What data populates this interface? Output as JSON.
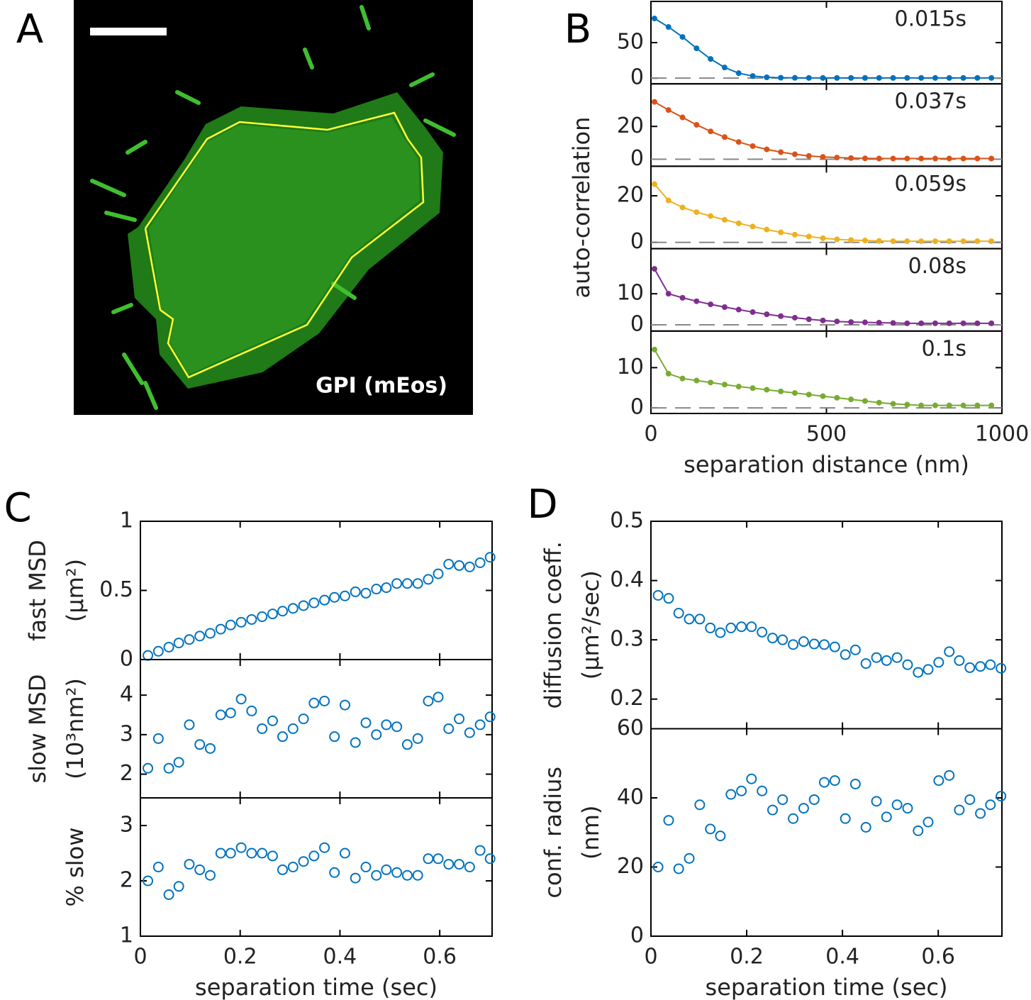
{
  "image_panel": {
    "panel": "A",
    "label": "GPI (mEos)"
  },
  "chart_data": [
    {
      "type": "line",
      "panel": "B",
      "ylabel": "auto-correlation",
      "xlabel": "separation distance (nm)",
      "xlim": [
        0,
        1000
      ],
      "xticks": [
        0,
        500,
        1000
      ],
      "hline": 0,
      "x": [
        10,
        50,
        90,
        130,
        170,
        210,
        250,
        290,
        330,
        370,
        410,
        450,
        490,
        530,
        570,
        610,
        650,
        690,
        730,
        770,
        810,
        850,
        890,
        930,
        970
      ],
      "subplots": [
        {
          "ylim": [
            -8,
            108
          ],
          "yticks": [
            0,
            50
          ],
          "series": [
            {
              "name": "0.015s",
              "color": "#0072bd",
              "values": [
                84,
                72,
                58,
                42,
                27,
                15,
                7,
                3,
                1.2,
                0.6,
                0.4,
                0.3,
                0.3,
                0.3,
                0.3,
                0.3,
                0.3,
                0.3,
                0.3,
                0.3,
                0.3,
                0.3,
                0.3,
                0.3,
                0.3
              ]
            }
          ]
        },
        {
          "ylim": [
            -4.3,
            46
          ],
          "yticks": [
            0,
            20
          ],
          "series": [
            {
              "name": "0.037s",
              "color": "#d95319",
              "values": [
                35,
                30,
                25.5,
                21,
                17,
                13.5,
                10.5,
                8,
                6,
                4.3,
                3,
                2,
                1.4,
                1,
                0.7,
                0.5,
                0.4,
                0.4,
                0.4,
                0.4,
                0.4,
                0.4,
                0.4,
                0.4,
                0.4
              ]
            }
          ]
        },
        {
          "ylim": [
            -2.7,
            32.7
          ],
          "yticks": [
            0,
            20
          ],
          "series": [
            {
              "name": "0.059s",
              "color": "#edb120",
              "values": [
                25,
                18,
                15,
                13,
                11.3,
                9.7,
                8.2,
                6.8,
                5.5,
                4.3,
                3.3,
                2.5,
                1.8,
                1.3,
                1,
                0.8,
                0.6,
                0.5,
                0.5,
                0.5,
                0.5,
                0.5,
                0.5,
                0.5,
                0.5
              ]
            }
          ]
        },
        {
          "ylim": [
            -2,
            24.5
          ],
          "yticks": [
            0,
            10
          ],
          "series": [
            {
              "name": "0.08s",
              "color": "#7e2f8e",
              "values": [
                18,
                10,
                8.7,
                7.6,
                6.6,
                5.7,
                4.9,
                4.1,
                3.4,
                2.8,
                2.3,
                1.8,
                1.4,
                1.1,
                0.9,
                0.8,
                0.7,
                0.6,
                0.5,
                0.5,
                0.5,
                0.5,
                0.5,
                0.5,
                0.5
              ]
            }
          ]
        },
        {
          "ylim": [
            -1.4,
            19.1
          ],
          "yticks": [
            0,
            10
          ],
          "series": [
            {
              "name": "0.1s",
              "color": "#77ac30",
              "values": [
                14.5,
                8.5,
                7.3,
                6.8,
                6.3,
                5.8,
                5.3,
                4.9,
                4.5,
                4.1,
                3.7,
                3.3,
                2.9,
                2.5,
                2.1,
                1.7,
                1.3,
                1,
                0.8,
                0.6,
                0.6,
                0.6,
                0.6,
                0.6,
                0.6
              ]
            }
          ]
        }
      ]
    },
    {
      "type": "scatter",
      "panel": "C",
      "xlabel": "separation time (sec)",
      "xlim": [
        0,
        0.705
      ],
      "xticks": [
        0,
        0.2,
        0.4,
        0.6
      ],
      "x": [
        0.015,
        0.036,
        0.057,
        0.077,
        0.098,
        0.119,
        0.14,
        0.161,
        0.181,
        0.202,
        0.223,
        0.244,
        0.265,
        0.285,
        0.306,
        0.327,
        0.348,
        0.369,
        0.389,
        0.41,
        0.431,
        0.452,
        0.473,
        0.493,
        0.514,
        0.535,
        0.556,
        0.577,
        0.597,
        0.618,
        0.639,
        0.66,
        0.681,
        0.701
      ],
      "subplots": [
        {
          "ylabel": [
            "fast MSD",
            "(μm²)"
          ],
          "ylim": [
            0,
            1
          ],
          "yticks": [
            0,
            0.5,
            1
          ],
          "series": [
            {
              "color": "#0072bd",
              "values": [
                0.03,
                0.06,
                0.09,
                0.12,
                0.145,
                0.17,
                0.19,
                0.22,
                0.25,
                0.27,
                0.29,
                0.31,
                0.33,
                0.35,
                0.37,
                0.39,
                0.41,
                0.43,
                0.45,
                0.46,
                0.49,
                0.48,
                0.51,
                0.52,
                0.55,
                0.55,
                0.55,
                0.58,
                0.62,
                0.69,
                0.68,
                0.67,
                0.7,
                0.74
              ]
            }
          ]
        },
        {
          "ylabel": [
            "slow MSD",
            "(10³nm²)"
          ],
          "ylim": [
            1.4,
            4.9
          ],
          "yticks": [
            2,
            3,
            4
          ],
          "series": [
            {
              "color": "#0072bd",
              "values": [
                2.15,
                2.9,
                2.15,
                2.3,
                3.25,
                2.75,
                2.65,
                3.5,
                3.55,
                3.9,
                3.6,
                3.15,
                3.35,
                2.95,
                3.15,
                3.4,
                3.8,
                3.85,
                2.95,
                3.75,
                2.8,
                3.3,
                3.0,
                3.25,
                3.2,
                2.75,
                2.9,
                3.85,
                3.95,
                3.15,
                3.4,
                3.05,
                3.25,
                3.45
              ]
            }
          ]
        },
        {
          "ylabel": [
            "% slow"
          ],
          "ylim": [
            1,
            3.5
          ],
          "yticks": [
            1,
            2,
            3
          ],
          "series": [
            {
              "color": "#0072bd",
              "values": [
                2.0,
                2.25,
                1.75,
                1.9,
                2.3,
                2.2,
                2.1,
                2.5,
                2.5,
                2.6,
                2.5,
                2.5,
                2.45,
                2.2,
                2.25,
                2.35,
                2.45,
                2.6,
                2.15,
                2.5,
                2.05,
                2.25,
                2.1,
                2.2,
                2.15,
                2.1,
                2.1,
                2.4,
                2.4,
                2.3,
                2.3,
                2.25,
                2.55,
                2.4
              ]
            }
          ]
        }
      ]
    },
    {
      "type": "scatter",
      "panel": "D",
      "xlabel": "separation time (sec)",
      "xlim": [
        0,
        0.733
      ],
      "xticks": [
        0,
        0.2,
        0.4,
        0.6
      ],
      "x": [
        0.015,
        0.037,
        0.058,
        0.08,
        0.102,
        0.124,
        0.145,
        0.167,
        0.189,
        0.21,
        0.232,
        0.254,
        0.275,
        0.297,
        0.319,
        0.341,
        0.362,
        0.384,
        0.406,
        0.427,
        0.449,
        0.471,
        0.492,
        0.514,
        0.536,
        0.558,
        0.579,
        0.601,
        0.623,
        0.644,
        0.666,
        0.688,
        0.709,
        0.731
      ],
      "subplots": [
        {
          "ylabel": [
            "diffusion coeff.",
            "(μm²/sec)"
          ],
          "ylim": [
            0.15,
            0.5
          ],
          "yticks": [
            0.2,
            0.3,
            0.4,
            0.5
          ],
          "series": [
            {
              "color": "#0072bd",
              "values": [
                0.375,
                0.37,
                0.345,
                0.335,
                0.335,
                0.32,
                0.312,
                0.32,
                0.322,
                0.322,
                0.313,
                0.303,
                0.3,
                0.292,
                0.297,
                0.293,
                0.292,
                0.288,
                0.275,
                0.283,
                0.26,
                0.27,
                0.265,
                0.27,
                0.258,
                0.245,
                0.25,
                0.262,
                0.28,
                0.265,
                0.253,
                0.255,
                0.258,
                0.252
              ]
            }
          ]
        },
        {
          "ylabel": [
            "conf. radius",
            "(nm)"
          ],
          "ylim": [
            0,
            60
          ],
          "yticks": [
            0,
            20,
            40,
            60
          ],
          "series": [
            {
              "color": "#0072bd",
              "values": [
                20,
                33.5,
                19.5,
                22.5,
                38,
                31,
                29,
                41,
                42,
                45.5,
                42,
                36.5,
                39.5,
                34,
                37,
                39.5,
                44.5,
                45,
                34,
                44,
                31.5,
                39,
                34.5,
                38,
                37,
                30.5,
                33,
                45,
                46.5,
                36.5,
                39.5,
                35.5,
                38,
                40.5
              ]
            }
          ]
        }
      ]
    }
  ]
}
